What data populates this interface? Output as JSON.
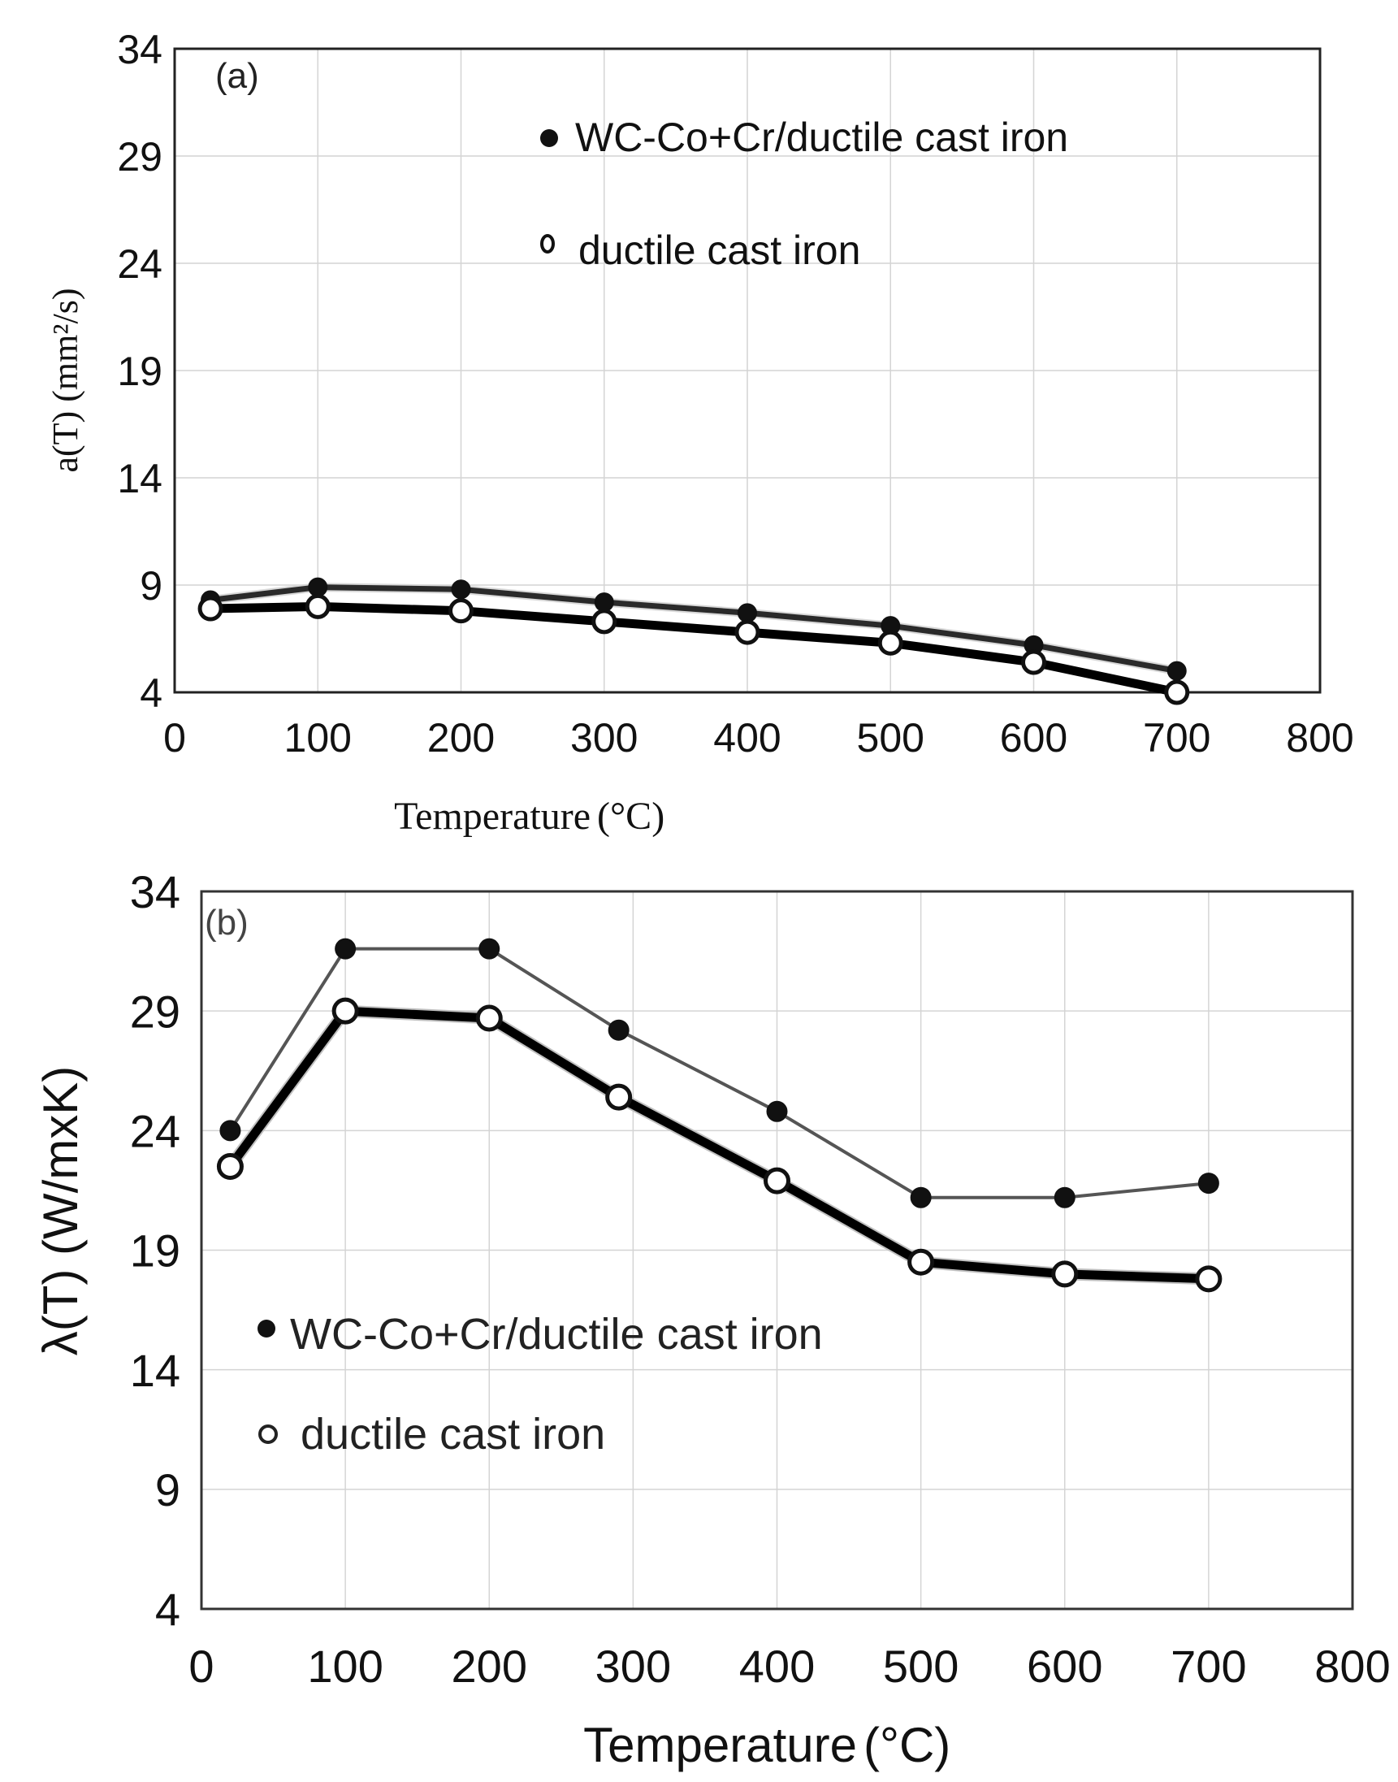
{
  "chart_data": [
    {
      "type": "line",
      "panel_label": "(a)",
      "title": "",
      "xlabel": "Temperature",
      "xunit": "(°C)",
      "ylabel": "a(T) (mm²/s)",
      "xlim": [
        0,
        800
      ],
      "ylim": [
        4,
        34
      ],
      "xticks": [
        0,
        100,
        200,
        300,
        400,
        500,
        600,
        700,
        800
      ],
      "yticks": [
        4,
        9,
        14,
        19,
        24,
        29,
        34
      ],
      "legend_position": "top-right",
      "grid": true,
      "series": [
        {
          "name": "WC-Co+Cr/ductile cast iron",
          "marker": "filled-circle",
          "color": "#111111",
          "x": [
            25,
            100,
            200,
            300,
            400,
            500,
            600,
            700
          ],
          "y": [
            8.3,
            8.9,
            8.8,
            8.2,
            7.7,
            7.1,
            6.2,
            5.0
          ]
        },
        {
          "name": "ductile cast iron",
          "marker": "open-circle",
          "color": "#111111",
          "x": [
            25,
            100,
            200,
            300,
            400,
            500,
            600,
            700
          ],
          "y": [
            7.9,
            8.0,
            7.8,
            7.3,
            6.8,
            6.3,
            5.4,
            4.0
          ]
        }
      ]
    },
    {
      "type": "line",
      "panel_label": "(b)",
      "title": "",
      "xlabel": "Temperature",
      "xunit": "(°C)",
      "ylabel": "λ(T) (W/mxK)",
      "xlim": [
        0,
        800
      ],
      "ylim": [
        4,
        34
      ],
      "xticks": [
        0,
        100,
        200,
        300,
        400,
        500,
        600,
        700,
        800
      ],
      "yticks": [
        4,
        9,
        14,
        19,
        24,
        29,
        34
      ],
      "legend_position": "bottom-left",
      "grid": true,
      "series": [
        {
          "name": "WC-Co+Cr/ductile cast iron",
          "marker": "filled-circle",
          "color": "#111111",
          "x": [
            20,
            100,
            200,
            290,
            400,
            500,
            600,
            700
          ],
          "y": [
            24.0,
            31.6,
            31.6,
            28.2,
            24.8,
            21.2,
            21.2,
            21.8
          ]
        },
        {
          "name": "ductile cast iron",
          "marker": "open-circle",
          "color": "#111111",
          "x": [
            20,
            100,
            200,
            290,
            400,
            500,
            600,
            700
          ],
          "y": [
            22.5,
            29.0,
            28.7,
            25.4,
            21.9,
            18.5,
            18.0,
            17.8
          ]
        }
      ]
    }
  ]
}
